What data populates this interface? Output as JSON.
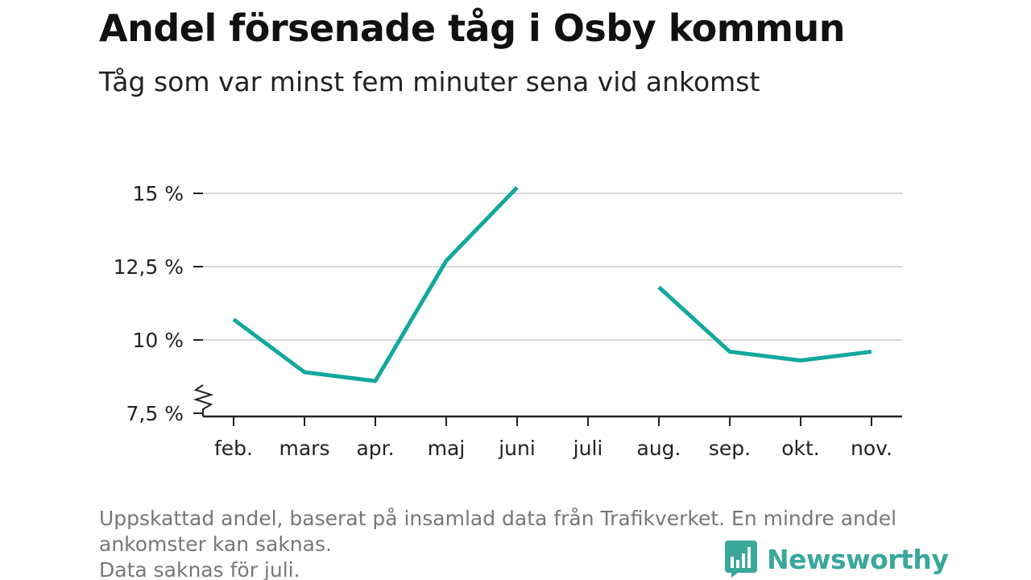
{
  "title": "Andel försenade tåg i Osby kommun",
  "subtitle": "Tåg som var minst fem minuter sena vid ankomst",
  "footnote": {
    "line1": "Uppskattad andel, baserat på insamlad data från Trafikverket. En mindre andel",
    "line2": "ankomster kan saknas.",
    "line3": "Data saknas för juli."
  },
  "logo": {
    "text": "Newsworthy",
    "icon": "newsworthy-chat-bars-icon"
  },
  "colors": {
    "line": "#13a89e",
    "grid": "#d9d9d9",
    "axis": "#222222",
    "logo": "#3aa79b"
  },
  "chart_data": {
    "type": "line",
    "categories": [
      "feb.",
      "mars",
      "apr.",
      "maj",
      "juni",
      "juli",
      "aug.",
      "sep.",
      "okt.",
      "nov."
    ],
    "series": [
      {
        "values": [
          10.7,
          8.9,
          8.6,
          12.7,
          15.2,
          null,
          11.8,
          9.6,
          9.3,
          9.6
        ]
      }
    ],
    "y_ticks": [
      {
        "value": 7.5,
        "label": "7,5 %"
      },
      {
        "value": 10,
        "label": "10 %"
      },
      {
        "value": 12.5,
        "label": "12,5 %"
      },
      {
        "value": 15,
        "label": "15 %"
      }
    ],
    "ylim": [
      7.5,
      15.5
    ],
    "axis_break": true,
    "grid": true,
    "xlabel": "",
    "ylabel": ""
  }
}
